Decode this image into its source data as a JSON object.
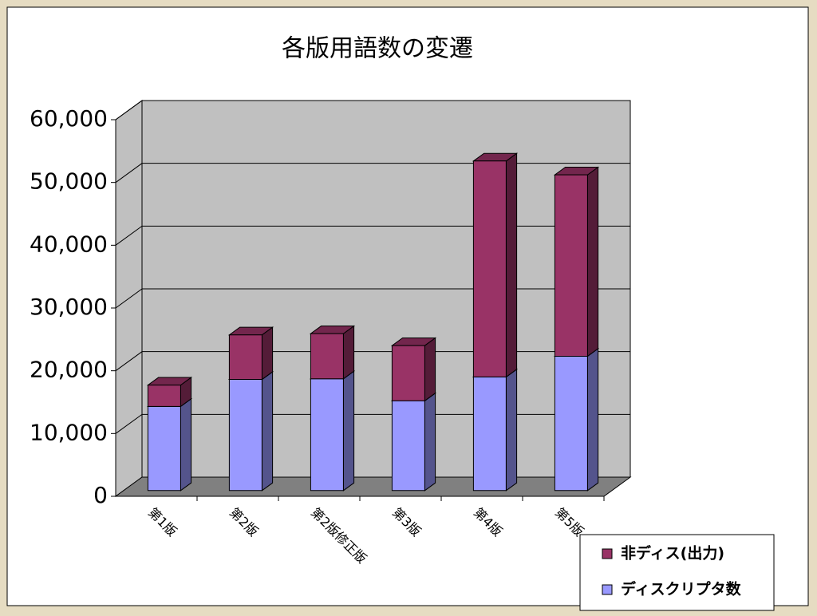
{
  "chart_data": {
    "type": "bar",
    "stacked": true,
    "title": "各版用語数の変遷",
    "categories": [
      "第1版",
      "第2版",
      "第2版修正版",
      "第3版",
      "第4版",
      "第5版"
    ],
    "series": [
      {
        "name": "ディスクリプタ数",
        "color": "#9999ff",
        "values": [
          13400,
          17700,
          17800,
          14300,
          18100,
          21400
        ]
      },
      {
        "name": "非ディス(出力)",
        "color": "#993366",
        "values": [
          3400,
          7100,
          7200,
          8800,
          34400,
          28900
        ]
      }
    ],
    "ylim": [
      0,
      60000
    ],
    "yticks": [
      0,
      {
        "value": 10000,
        "label": "10,000"
      },
      {
        "value": 20000,
        "label": "20,000"
      },
      {
        "value": 30000,
        "label": "30,000"
      },
      {
        "value": 40000,
        "label": "40,000"
      },
      {
        "value": 50000,
        "label": "50,000"
      },
      {
        "value": 60000,
        "label": "60,000"
      }
    ],
    "grid": true
  }
}
